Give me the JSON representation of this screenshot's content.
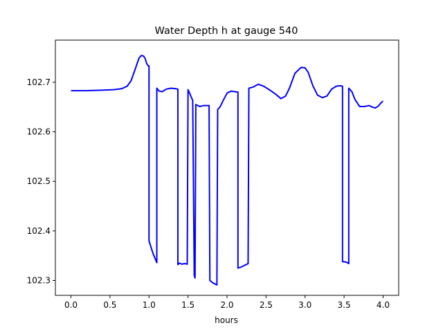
{
  "chart_data": {
    "type": "line",
    "title": "Water Depth h at gauge 540",
    "xlabel": "hours",
    "ylabel": "",
    "xlim": [
      -0.2,
      4.2
    ],
    "ylim": [
      102.27,
      102.785
    ],
    "xticks": [
      0.0,
      0.5,
      1.0,
      1.5,
      2.0,
      2.5,
      3.0,
      3.5,
      4.0
    ],
    "xtick_labels": [
      "0.0",
      "0.5",
      "1.0",
      "1.5",
      "2.0",
      "2.5",
      "3.0",
      "3.5",
      "4.0"
    ],
    "yticks": [
      102.3,
      102.4,
      102.5,
      102.6,
      102.7
    ],
    "ytick_labels": [
      "102.3",
      "102.4",
      "102.5",
      "102.6",
      "102.7"
    ],
    "grid": false,
    "series": [
      {
        "color": "#0000ff",
        "x": [
          0.0,
          0.2,
          0.4,
          0.55,
          0.65,
          0.72,
          0.77,
          0.82,
          0.87,
          0.9,
          0.93,
          0.95,
          0.97,
          0.99,
          1.0,
          1.0,
          1.05,
          1.1,
          1.1,
          1.13,
          1.17,
          1.22,
          1.28,
          1.34,
          1.37,
          1.37,
          1.39,
          1.42,
          1.46,
          1.49,
          1.5,
          1.52,
          1.56,
          1.58,
          1.59,
          1.6,
          1.65,
          1.7,
          1.77,
          1.78,
          1.82,
          1.87,
          1.88,
          1.91,
          1.95,
          2.0,
          2.05,
          2.1,
          2.14,
          2.14,
          2.18,
          2.23,
          2.27,
          2.28,
          2.33,
          2.4,
          2.47,
          2.55,
          2.63,
          2.69,
          2.75,
          2.8,
          2.87,
          2.95,
          3.0,
          3.04,
          3.1,
          3.16,
          3.22,
          3.28,
          3.34,
          3.4,
          3.45,
          3.48,
          3.48,
          3.53,
          3.56,
          3.56,
          3.6,
          3.64,
          3.7,
          3.76,
          3.82,
          3.86,
          3.9,
          3.94,
          3.97,
          4.0
        ],
        "y": [
          102.683,
          102.683,
          102.684,
          102.685,
          102.687,
          102.692,
          102.703,
          102.725,
          102.748,
          102.754,
          102.753,
          102.748,
          102.738,
          102.733,
          102.733,
          102.38,
          102.355,
          102.336,
          102.688,
          102.682,
          102.681,
          102.686,
          102.688,
          102.687,
          102.686,
          102.332,
          102.335,
          102.333,
          102.334,
          102.333,
          102.685,
          102.678,
          102.663,
          102.31,
          102.305,
          102.655,
          102.651,
          102.653,
          102.653,
          102.3,
          102.295,
          102.291,
          102.645,
          102.65,
          102.663,
          102.678,
          102.682,
          102.681,
          102.68,
          102.325,
          102.327,
          102.331,
          102.334,
          102.688,
          102.69,
          102.696,
          102.692,
          102.684,
          102.675,
          102.667,
          102.672,
          102.688,
          102.718,
          102.73,
          102.729,
          102.72,
          102.693,
          102.674,
          102.669,
          102.672,
          102.686,
          102.692,
          102.693,
          102.692,
          102.338,
          102.337,
          102.334,
          102.688,
          102.681,
          102.665,
          102.651,
          102.651,
          102.653,
          102.65,
          102.648,
          102.652,
          102.658,
          102.662
        ]
      }
    ]
  }
}
